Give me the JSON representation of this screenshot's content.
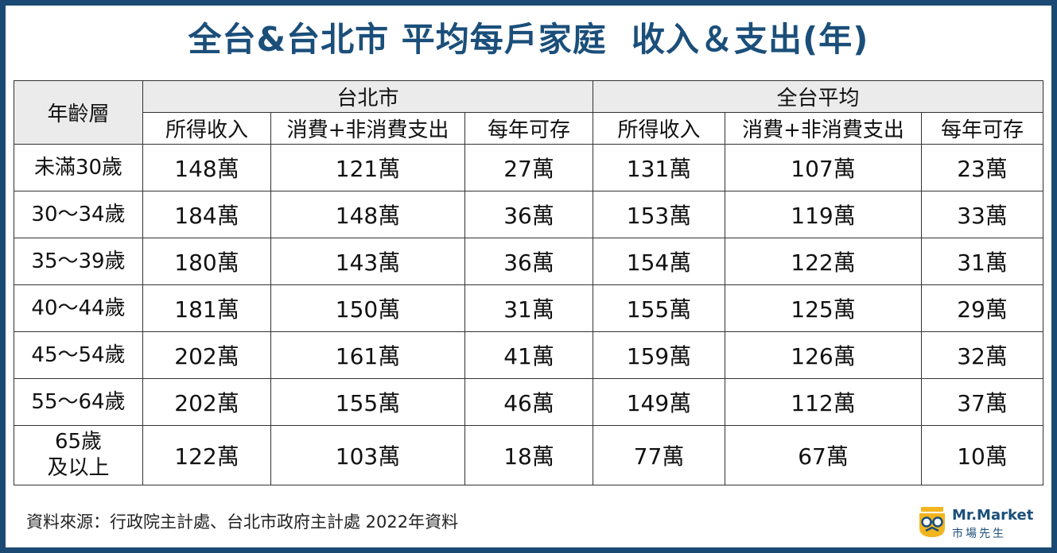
{
  "title": "全台&台北市 平均每戶家庭  收入＆支出(年)",
  "table": {
    "age_header": "年齡層",
    "groups": [
      "台北市",
      "全台平均"
    ],
    "columns": [
      "所得收入",
      "消費+非消費支出",
      "每年可存",
      "所得收入",
      "消費+非消費支出",
      "每年可存"
    ],
    "rows": [
      {
        "age": "未滿30歲",
        "cells": [
          "148萬",
          "121萬",
          "27萬",
          "131萬",
          "107萬",
          "23萬"
        ]
      },
      {
        "age": "30～34歲",
        "cells": [
          "184萬",
          "148萬",
          "36萬",
          "153萬",
          "119萬",
          "33萬"
        ]
      },
      {
        "age": "35～39歲",
        "cells": [
          "180萬",
          "143萬",
          "36萬",
          "154萬",
          "122萬",
          "31萬"
        ]
      },
      {
        "age": "40～44歲",
        "cells": [
          "181萬",
          "150萬",
          "31萬",
          "155萬",
          "125萬",
          "29萬"
        ]
      },
      {
        "age": "45～54歲",
        "cells": [
          "202萬",
          "161萬",
          "41萬",
          "159萬",
          "126萬",
          "32萬"
        ]
      },
      {
        "age": "55～64歲",
        "cells": [
          "202萬",
          "155萬",
          "46萬",
          "149萬",
          "112萬",
          "37萬"
        ]
      },
      {
        "age_line1": "65歲",
        "age_line2": "及以上",
        "cells": [
          "122萬",
          "103萬",
          "18萬",
          "77萬",
          "67萬",
          "10萬"
        ]
      }
    ]
  },
  "source": "資料來源：行政院主計處、台北市政府主計處 2022年資料",
  "logo": {
    "name": "Mr.Market",
    "subtitle": "市場先生",
    "icon": "owl-glasses-icon",
    "colors": {
      "primary": "#1b4f7a",
      "accent": "#f2b51d"
    }
  },
  "colors": {
    "border": "#1a4a73",
    "title": "#1b4f7a",
    "header_bg": "#ebebeb"
  }
}
